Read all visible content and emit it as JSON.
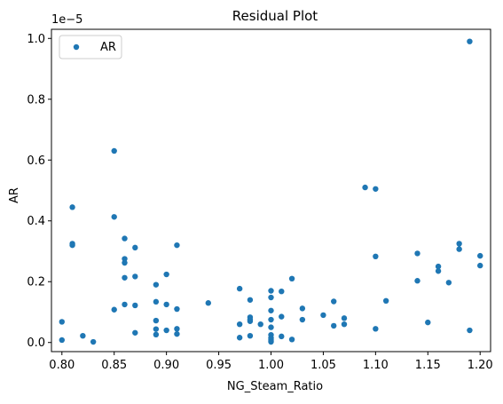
{
  "chart_data": {
    "type": "scatter",
    "title": "Residual Plot",
    "xlabel": "NG_Steam_Ratio",
    "ylabel": "AR",
    "y_offset_label": "1e−5",
    "xlim": [
      0.79,
      1.21
    ],
    "ylim": [
      -0.03,
      1.03
    ],
    "x_ticks": [
      0.8,
      0.85,
      0.9,
      0.95,
      1.0,
      1.05,
      1.1,
      1.15,
      1.2
    ],
    "x_tick_labels": [
      "0.80",
      "0.85",
      "0.90",
      "0.95",
      "1.00",
      "1.05",
      "1.10",
      "1.15",
      "1.20"
    ],
    "y_ticks": [
      0.0,
      0.2,
      0.4,
      0.6,
      0.8,
      1.0
    ],
    "y_tick_labels": [
      "0.0",
      "0.2",
      "0.4",
      "0.6",
      "0.8",
      "1.0"
    ],
    "legend_position": "top-left",
    "grid": false,
    "series": [
      {
        "name": "AR",
        "color": "#1f77b4",
        "points": [
          [
            0.8,
            0.068
          ],
          [
            0.8,
            0.008
          ],
          [
            0.81,
            0.445
          ],
          [
            0.81,
            0.325
          ],
          [
            0.81,
            0.32
          ],
          [
            0.82,
            0.022
          ],
          [
            0.83,
            0.002
          ],
          [
            0.85,
            0.63
          ],
          [
            0.85,
            0.413
          ],
          [
            0.85,
            0.108
          ],
          [
            0.86,
            0.342
          ],
          [
            0.86,
            0.275
          ],
          [
            0.86,
            0.262
          ],
          [
            0.86,
            0.213
          ],
          [
            0.86,
            0.125
          ],
          [
            0.87,
            0.312
          ],
          [
            0.87,
            0.217
          ],
          [
            0.87,
            0.122
          ],
          [
            0.87,
            0.032
          ],
          [
            0.89,
            0.19
          ],
          [
            0.89,
            0.134
          ],
          [
            0.89,
            0.072
          ],
          [
            0.89,
            0.044
          ],
          [
            0.89,
            0.026
          ],
          [
            0.9,
            0.224
          ],
          [
            0.9,
            0.125
          ],
          [
            0.9,
            0.04
          ],
          [
            0.91,
            0.32
          ],
          [
            0.91,
            0.11
          ],
          [
            0.91,
            0.045
          ],
          [
            0.91,
            0.028
          ],
          [
            0.94,
            0.13
          ],
          [
            0.97,
            0.177
          ],
          [
            0.97,
            0.06
          ],
          [
            0.97,
            0.016
          ],
          [
            0.98,
            0.14
          ],
          [
            0.98,
            0.083
          ],
          [
            0.98,
            0.075
          ],
          [
            0.98,
            0.07
          ],
          [
            0.98,
            0.022
          ],
          [
            0.99,
            0.06
          ],
          [
            1.0,
            0.17
          ],
          [
            1.0,
            0.148
          ],
          [
            1.0,
            0.105
          ],
          [
            1.0,
            0.075
          ],
          [
            1.0,
            0.05
          ],
          [
            1.0,
            0.025
          ],
          [
            1.0,
            0.015
          ],
          [
            1.0,
            0.008
          ],
          [
            1.0,
            0.002
          ],
          [
            1.01,
            0.168
          ],
          [
            1.01,
            0.085
          ],
          [
            1.01,
            0.02
          ],
          [
            1.02,
            0.21
          ],
          [
            1.02,
            0.01
          ],
          [
            1.03,
            0.112
          ],
          [
            1.03,
            0.075
          ],
          [
            1.05,
            0.09
          ],
          [
            1.06,
            0.135
          ],
          [
            1.06,
            0.055
          ],
          [
            1.07,
            0.08
          ],
          [
            1.07,
            0.06
          ],
          [
            1.09,
            0.51
          ],
          [
            1.1,
            0.505
          ],
          [
            1.1,
            0.283
          ],
          [
            1.1,
            0.045
          ],
          [
            1.11,
            0.137
          ],
          [
            1.14,
            0.293
          ],
          [
            1.14,
            0.203
          ],
          [
            1.15,
            0.066
          ],
          [
            1.16,
            0.25
          ],
          [
            1.16,
            0.235
          ],
          [
            1.17,
            0.197
          ],
          [
            1.18,
            0.325
          ],
          [
            1.18,
            0.307
          ],
          [
            1.19,
            0.99
          ],
          [
            1.19,
            0.04
          ],
          [
            1.2,
            0.285
          ],
          [
            1.2,
            0.253
          ]
        ]
      }
    ]
  }
}
